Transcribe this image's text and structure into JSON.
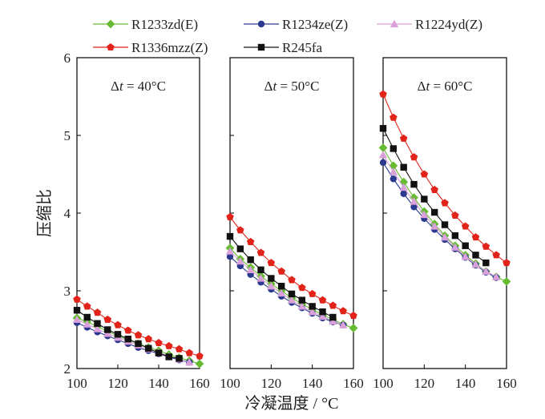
{
  "chart_data": {
    "type": "line",
    "ylabel": "压缩比",
    "xlabel": "冷凝温度 / °C",
    "ylim": [
      2,
      6
    ],
    "yticks": [
      2,
      3,
      4,
      5,
      6
    ],
    "xlim": [
      100,
      160
    ],
    "xticks": [
      100,
      120,
      140,
      160
    ],
    "legend": {
      "placement": "top",
      "entries": [
        "R1233zd(E)",
        "R1234ze(Z)",
        "R1224yd(Z)",
        "R1336mzz(Z)",
        "R245fa"
      ]
    },
    "series_styles": [
      {
        "name": "R1233zd(E)",
        "color": "#66bb33",
        "marker": "diamond"
      },
      {
        "name": "R1234ze(Z)",
        "color": "#2b3a8f",
        "marker": "circle"
      },
      {
        "name": "R1224yd(Z)",
        "color": "#d9a0d9",
        "marker": "triangle"
      },
      {
        "name": "R1336mzz(Z)",
        "color": "#e2231a",
        "marker": "pentagon"
      },
      {
        "name": "R245fa",
        "color": "#111111",
        "marker": "square"
      }
    ],
    "panels": [
      {
        "label_prefix": "Δ",
        "label_var": "t",
        "label_suffix": " = 40°C",
        "series": [
          {
            "name": "R1233zd(E)",
            "x": [
              100,
              105,
              110,
              115,
              120,
              125,
              130,
              135,
              140,
              145,
              150,
              155,
              160
            ],
            "values": [
              2.65,
              2.6,
              2.54,
              2.48,
              2.42,
              2.37,
              2.32,
              2.27,
              2.23,
              2.18,
              2.14,
              2.1,
              2.06
            ]
          },
          {
            "name": "R1234ze(Z)",
            "x": [
              100,
              105,
              110,
              115,
              120,
              125,
              130,
              135,
              140,
              145,
              150,
              155
            ],
            "values": [
              2.59,
              2.53,
              2.47,
              2.42,
              2.37,
              2.32,
              2.27,
              2.23,
              2.19,
              2.15,
              2.11,
              2.08
            ]
          },
          {
            "name": "R1224yd(Z)",
            "x": [
              100,
              105,
              110,
              115,
              120,
              125,
              130,
              135,
              140,
              145,
              150,
              155
            ],
            "values": [
              2.63,
              2.57,
              2.51,
              2.45,
              2.4,
              2.35,
              2.3,
              2.25,
              2.21,
              2.16,
              2.12,
              2.08
            ]
          },
          {
            "name": "R1336mzz(Z)",
            "x": [
              100,
              105,
              110,
              115,
              120,
              125,
              130,
              135,
              140,
              145,
              150,
              155,
              160
            ],
            "values": [
              2.89,
              2.8,
              2.72,
              2.63,
              2.56,
              2.49,
              2.43,
              2.38,
              2.33,
              2.29,
              2.25,
              2.2,
              2.16
            ]
          },
          {
            "name": "R245fa",
            "x": [
              100,
              105,
              110,
              115,
              120,
              125,
              130,
              135,
              140,
              145,
              150
            ],
            "values": [
              2.75,
              2.66,
              2.58,
              2.5,
              2.44,
              2.38,
              2.32,
              2.26,
              2.2,
              2.15,
              2.13
            ]
          }
        ]
      },
      {
        "label_prefix": "Δ",
        "label_var": "t",
        "label_suffix": " = 50°C",
        "series": [
          {
            "name": "R1233zd(E)",
            "x": [
              100,
              105,
              110,
              115,
              120,
              125,
              130,
              135,
              140,
              145,
              150,
              155,
              160
            ],
            "values": [
              3.55,
              3.41,
              3.3,
              3.19,
              3.09,
              3.0,
              2.91,
              2.83,
              2.76,
              2.69,
              2.63,
              2.57,
              2.52
            ]
          },
          {
            "name": "R1234ze(Z)",
            "x": [
              100,
              105,
              110,
              115,
              120,
              125,
              130,
              135,
              140,
              145,
              150,
              155
            ],
            "values": [
              3.44,
              3.32,
              3.21,
              3.11,
              3.02,
              2.93,
              2.85,
              2.78,
              2.71,
              2.65,
              2.6,
              2.56
            ]
          },
          {
            "name": "R1224yd(Z)",
            "x": [
              100,
              105,
              110,
              115,
              120,
              125,
              130,
              135,
              140,
              145,
              150,
              155
            ],
            "values": [
              3.51,
              3.38,
              3.27,
              3.16,
              3.06,
              2.97,
              2.88,
              2.8,
              2.73,
              2.67,
              2.61,
              2.56
            ]
          },
          {
            "name": "R1336mzz(Z)",
            "x": [
              100,
              105,
              110,
              115,
              120,
              125,
              130,
              135,
              140,
              145,
              150,
              155,
              160
            ],
            "values": [
              3.95,
              3.78,
              3.63,
              3.49,
              3.36,
              3.25,
              3.14,
              3.04,
              2.96,
              2.88,
              2.81,
              2.74,
              2.68
            ]
          },
          {
            "name": "R245fa",
            "x": [
              100,
              105,
              110,
              115,
              120,
              125,
              130,
              135,
              140,
              145,
              150
            ],
            "values": [
              3.7,
              3.54,
              3.4,
              3.27,
              3.16,
              3.06,
              2.96,
              2.88,
              2.8,
              2.73,
              2.66
            ]
          }
        ]
      },
      {
        "label_prefix": "Δ",
        "label_var": "t",
        "label_suffix": " = 60°C",
        "series": [
          {
            "name": "R1233zd(E)",
            "x": [
              100,
              105,
              110,
              115,
              120,
              125,
              130,
              135,
              140,
              145,
              150,
              155,
              160
            ],
            "values": [
              4.84,
              4.61,
              4.4,
              4.2,
              4.02,
              3.86,
              3.71,
              3.58,
              3.46,
              3.35,
              3.25,
              3.18,
              3.12
            ]
          },
          {
            "name": "R1234ze(Z)",
            "x": [
              100,
              105,
              110,
              115,
              120,
              125,
              130,
              135,
              140,
              145,
              150,
              155
            ],
            "values": [
              4.65,
              4.44,
              4.25,
              4.08,
              3.93,
              3.79,
              3.66,
              3.54,
              3.43,
              3.33,
              3.24,
              3.17
            ]
          },
          {
            "name": "R1224yd(Z)",
            "x": [
              100,
              105,
              110,
              115,
              120,
              125,
              130,
              135,
              140,
              145,
              150,
              155
            ],
            "values": [
              4.75,
              4.53,
              4.33,
              4.15,
              3.98,
              3.83,
              3.69,
              3.56,
              3.44,
              3.34,
              3.25,
              3.18
            ]
          },
          {
            "name": "R1336mzz(Z)",
            "x": [
              100,
              105,
              110,
              115,
              120,
              125,
              130,
              135,
              140,
              145,
              150,
              155,
              160
            ],
            "values": [
              5.53,
              5.23,
              4.96,
              4.72,
              4.5,
              4.3,
              4.13,
              3.97,
              3.83,
              3.69,
              3.57,
              3.46,
              3.36
            ]
          },
          {
            "name": "R245fa",
            "x": [
              100,
              105,
              110,
              115,
              120,
              125,
              130,
              135,
              140,
              145,
              150
            ],
            "values": [
              5.09,
              4.83,
              4.59,
              4.37,
              4.18,
              4.01,
              3.85,
              3.71,
              3.58,
              3.46,
              3.36
            ]
          }
        ]
      }
    ]
  }
}
